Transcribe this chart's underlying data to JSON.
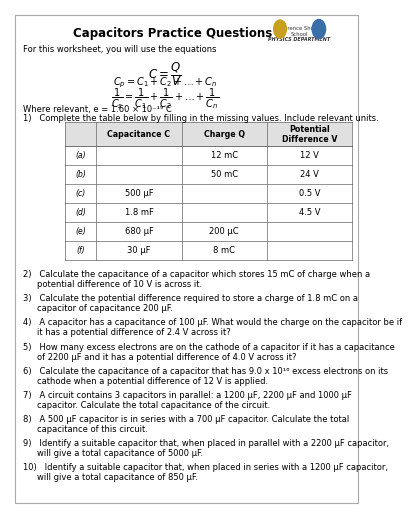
{
  "title": "Capacitors Practice Questions",
  "intro": "For this worksheet, you will use the equations",
  "where_note": "Where relevant, e = 1.60 × 10⁻¹⁹ C",
  "q1_intro": "1)   Complete the table below by filling in the missing values. Include relevant units.",
  "table_headers": [
    "",
    "Capacitance C",
    "Charge Q",
    "Potential\nDifference V"
  ],
  "table_rows": [
    [
      "(a)",
      "",
      "12 mC",
      "12 V"
    ],
    [
      "(b)",
      "",
      "50 mC",
      "24 V"
    ],
    [
      "(c)",
      "500 μF",
      "",
      "0.5 V"
    ],
    [
      "(d)",
      "1.8 mF",
      "",
      "4.5 V"
    ],
    [
      "(e)",
      "680 μF",
      "200 μC",
      ""
    ],
    [
      "(f)",
      "30 μF",
      "8 mC",
      ""
    ]
  ],
  "questions": [
    [
      "2)",
      "Calculate the capacitance of a capacitor which stores 15 mC of charge when a potential difference of 10 V is across it."
    ],
    [
      "3)",
      "Calculate the potential difference required to store a charge of 1.8 mC on a capacitor of capacitance 200 μF."
    ],
    [
      "4)",
      "A capacitor has a capacitance of 100 μF. What would the charge on the capacitor be if it has a potential difference of 2.4 V across it?"
    ],
    [
      "5)",
      "How many excess electrons are on the cathode of a capacitor if it has a capacitance of 2200 μF and it has a potential difference of 4.0 V across it?"
    ],
    [
      "6)",
      "Calculate the capacitance of a capacitor that has 9.0 x 10¹⁶ excess electrons on its cathode when a potential difference of 12 V is applied."
    ],
    [
      "7)",
      "A circuit contains 3 capacitors in parallel: a 1200 μF, 2200 μF and 1000 μF capacitor. Calculate the total capacitance of the circuit."
    ],
    [
      "8)",
      "A 500 μF capacitor is in series with a 700 μF capacitor. Calculate the total capacitance of this circuit."
    ],
    [
      "9)",
      "Identify a suitable capacitor that, when placed in parallel with a 2200 μF capacitor, will give a total capacitance of 5000 μF."
    ],
    [
      "10)",
      "Identify a suitable capacitor that, when placed in series with a 1200 μF capacitor, will give a total capacitance of 850 μF."
    ]
  ],
  "border_color": "#aaaaaa",
  "table_header_bg": "#e0e0e0",
  "font_size_title": 8.5,
  "font_size_body": 6.0,
  "font_size_eq": 6.5,
  "bg_color": "#ffffff"
}
